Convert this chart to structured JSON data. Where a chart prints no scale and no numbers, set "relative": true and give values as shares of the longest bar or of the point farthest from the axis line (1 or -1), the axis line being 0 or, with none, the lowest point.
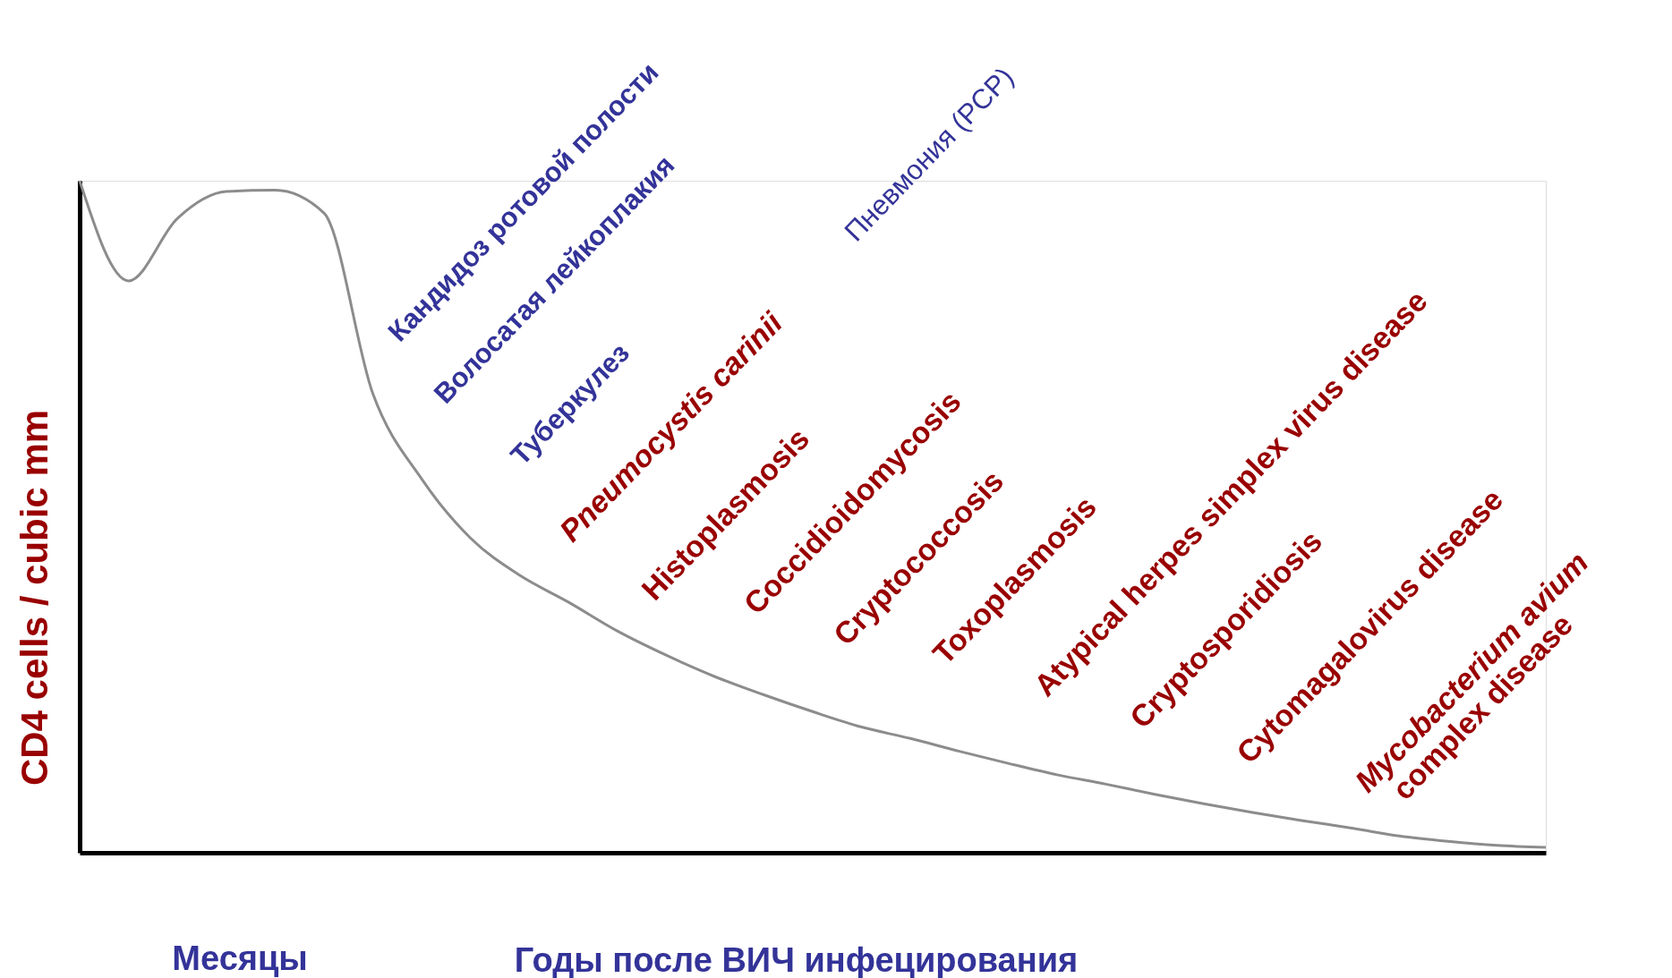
{
  "chart_data": {
    "type": "line",
    "relative": true,
    "categories": [
      null,
      null,
      null,
      null,
      null,
      null,
      null,
      null,
      null,
      null,
      null,
      null,
      null,
      null,
      null,
      null,
      null,
      null,
      null,
      null,
      null,
      null,
      null,
      null,
      null,
      null,
      null,
      null,
      null,
      null,
      null
    ],
    "values": [
      1.0,
      0.851,
      0.944,
      0.984,
      0.986,
      0.952,
      0.683,
      0.556,
      0.468,
      0.413,
      0.373,
      0.33,
      0.294,
      0.262,
      0.235,
      0.21,
      0.187,
      0.17,
      0.151,
      0.133,
      0.116,
      0.102,
      0.087,
      0.073,
      0.06,
      0.048,
      0.037,
      0.025,
      0.017,
      0.011,
      0.008
    ],
    "color": "#8c8c8c",
    "xlabel": "Годы после ВИЧ инфецирования",
    "ylabel": "CD4 cells / cubic mm",
    "annotations": [
      "Кандидоз ротовой полости",
      "Волосатая лейкоплакия",
      "Туберкулез",
      "Pneumocystis carinii",
      "Пневмония (PCP)",
      "Histoplasmosis",
      "Coccidioidomycosis",
      "Cryptococcosis",
      "Toxoplasmosis",
      "Atypical herpes simplex virus disease",
      "Cryptosporidiosis",
      "Cytomagalovirus disease",
      "Mycobacterium avium",
      "complex disease",
      "Месяцы"
    ]
  }
}
